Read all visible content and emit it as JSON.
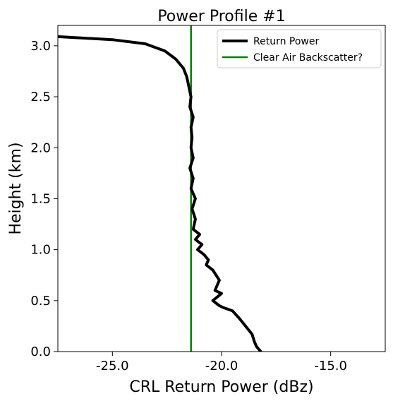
{
  "chart_data": {
    "type": "line",
    "title": "Power Profile #1",
    "xlabel": "CRL Return Power (dBz)",
    "ylabel": "Height (km)",
    "xlim": [
      -27.5,
      -12.5
    ],
    "ylim": [
      0.0,
      3.2
    ],
    "xticks": [
      -25.0,
      -20.0,
      -15.0
    ],
    "xtick_labels": [
      "-25.0",
      "-20.0",
      "-15.0"
    ],
    "yticks": [
      0.0,
      0.5,
      1.0,
      1.5,
      2.0,
      2.5,
      3.0
    ],
    "ytick_labels": [
      "0.0",
      "0.5",
      "1.0",
      "1.5",
      "2.0",
      "2.5",
      "3.0"
    ],
    "grid": false,
    "legend_position": "top-right",
    "series": [
      {
        "name": "Return Power",
        "color": "#000000",
        "x": [
          -18.2,
          -18.4,
          -18.5,
          -18.6,
          -18.9,
          -19.2,
          -19.5,
          -19.9,
          -20.1,
          -20.4,
          -20.0,
          -20.3,
          -20.1,
          -20.4,
          -20.7,
          -20.6,
          -20.8,
          -21.1,
          -20.9,
          -21.2,
          -21.0,
          -21.3,
          -21.2,
          -21.35,
          -21.2,
          -21.4,
          -21.3,
          -21.45,
          -21.3,
          -21.4,
          -21.35,
          -21.4,
          -21.3,
          -21.45,
          -21.4,
          -21.5,
          -21.55,
          -21.6,
          -21.75,
          -22.1,
          -22.6,
          -23.5,
          -25.0,
          -27.5
        ],
        "y": [
          0.0,
          0.05,
          0.1,
          0.17,
          0.25,
          0.33,
          0.4,
          0.43,
          0.45,
          0.5,
          0.57,
          0.6,
          0.7,
          0.8,
          0.85,
          0.9,
          0.95,
          1.0,
          1.05,
          1.1,
          1.15,
          1.2,
          1.3,
          1.4,
          1.5,
          1.6,
          1.7,
          1.8,
          1.9,
          2.0,
          2.1,
          2.2,
          2.3,
          2.4,
          2.5,
          2.6,
          2.65,
          2.7,
          2.78,
          2.87,
          2.95,
          3.02,
          3.06,
          3.09
        ]
      },
      {
        "name": "Clear Air Backscatter?",
        "color": "#008000",
        "x": [
          -21.4,
          -21.4
        ],
        "y": [
          0.0,
          3.2
        ]
      }
    ]
  }
}
